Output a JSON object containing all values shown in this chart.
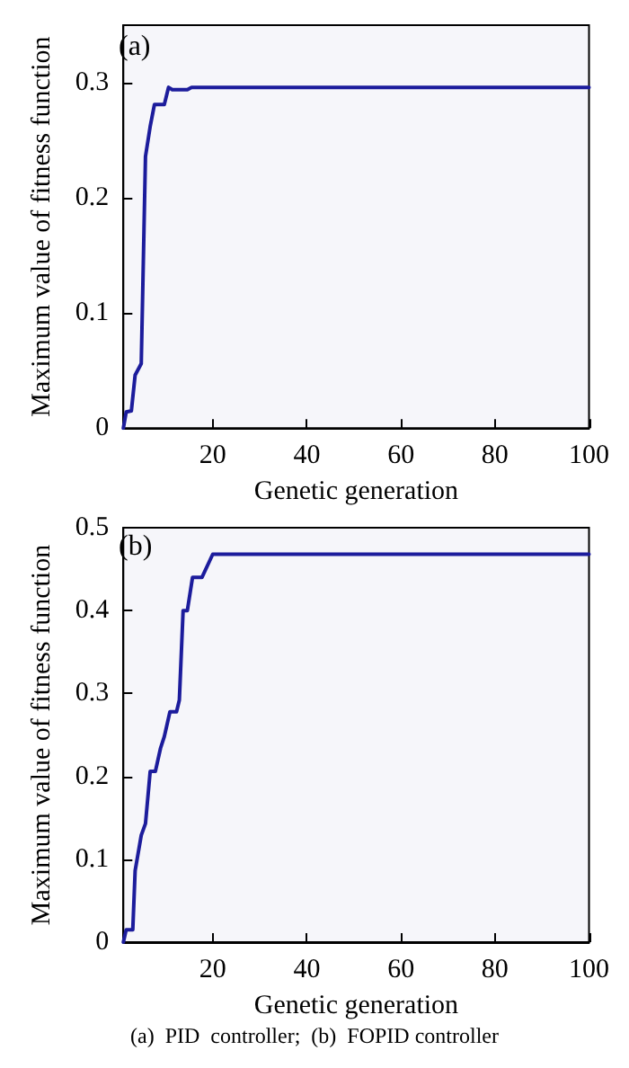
{
  "chart_data": [
    {
      "type": "line",
      "title": "(a)",
      "xlabel": "Genetic generation",
      "ylabel": "Maximum value of fitness function",
      "xlim": [
        1,
        100
      ],
      "xticks": [
        20,
        40,
        60,
        80,
        100
      ],
      "ylim": [
        0,
        0.35
      ],
      "yticks": [
        0,
        0.1,
        0.2,
        0.3
      ],
      "grid": false,
      "marker": "none",
      "line_style": "solid",
      "series": [
        {
          "color": "#1c1c9c",
          "x": [
            1,
            1.6,
            2.7,
            3.5,
            4.8,
            5.7,
            6.7,
            7.6,
            9.7,
            10.6,
            11.4,
            14.6,
            15.5,
            100
          ],
          "values": [
            0,
            0.014,
            0.015,
            0.046,
            0.056,
            0.236,
            0.262,
            0.281,
            0.281,
            0.296,
            0.294,
            0.294,
            0.296,
            0.296
          ]
        }
      ]
    },
    {
      "type": "line",
      "title": "(b)",
      "xlabel": "Genetic generation",
      "ylabel": "Maximum value of fitness function",
      "xlim": [
        1,
        100
      ],
      "xticks": [
        20,
        40,
        60,
        80,
        100
      ],
      "ylim": [
        0,
        0.5
      ],
      "yticks": [
        0,
        0.1,
        0.2,
        0.3,
        0.4,
        0.5
      ],
      "grid": false,
      "marker": "none",
      "line_style": "solid",
      "annotations": [
        "(a)  PID  controller;  (b)  FOPID controller"
      ],
      "series": [
        {
          "color": "#1c1c9c",
          "x": [
            1,
            1.6,
            3,
            3.5,
            4.8,
            5.7,
            6.7,
            7.8,
            8.9,
            9.7,
            10.9,
            12.3,
            12.9,
            13.7,
            14.6,
            15.7,
            17.7,
            20,
            100
          ],
          "values": [
            0,
            0.015,
            0.015,
            0.086,
            0.129,
            0.143,
            0.206,
            0.206,
            0.234,
            0.248,
            0.278,
            0.278,
            0.292,
            0.4,
            0.4,
            0.44,
            0.44,
            0.468,
            0.468
          ]
        }
      ]
    }
  ]
}
